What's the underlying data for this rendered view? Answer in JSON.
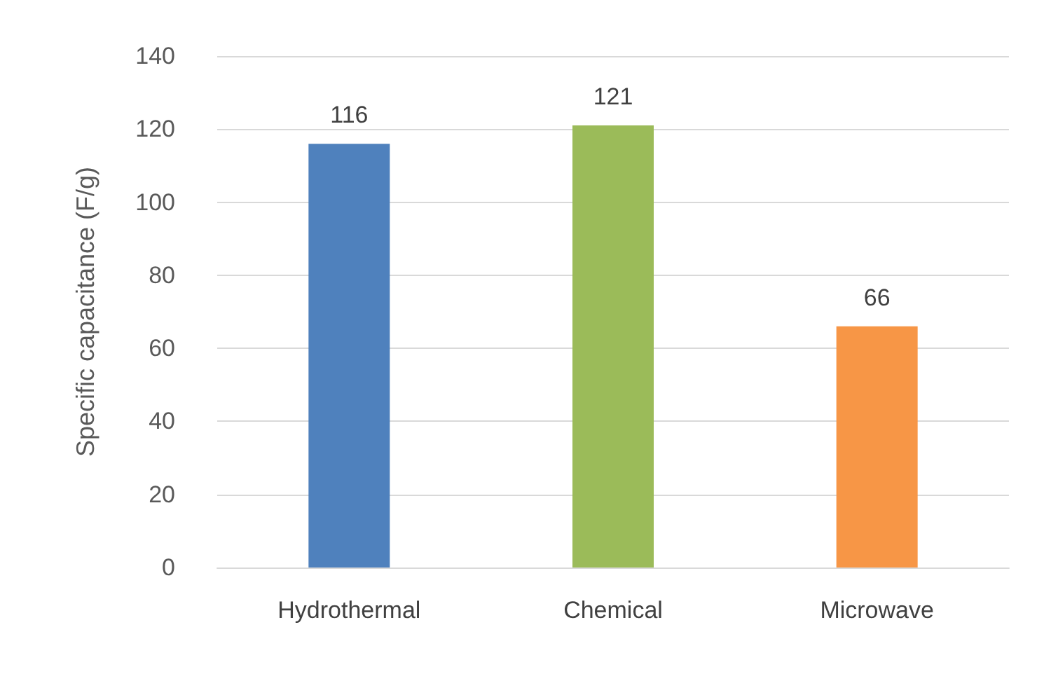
{
  "chart_data": {
    "type": "bar",
    "ylabel": "Specific capacitance (F/g)",
    "categories": [
      "Hydrothermal",
      "Chemical",
      "Microwave"
    ],
    "values": [
      116,
      121,
      66
    ],
    "colors": [
      "#4f81bd",
      "#9bbb59",
      "#f79646"
    ],
    "ylim": [
      0,
      140
    ],
    "yticks": [
      0,
      20,
      40,
      60,
      80,
      100,
      120,
      140
    ],
    "grid": "y",
    "data_labels": true
  }
}
